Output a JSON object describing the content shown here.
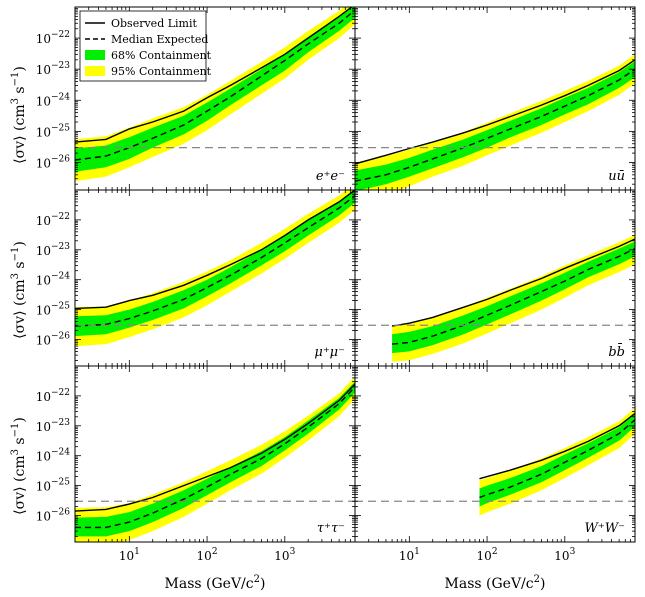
{
  "chart_data": {
    "type": "line",
    "layout": "3 rows x 2 columns, shared log axes",
    "x_scale": "log",
    "y_scale": "log",
    "xlim": [
      2,
      8000
    ],
    "ylim": [
      1.3e-27,
      1e-21
    ],
    "xlabel_main": "Mass (GeV/c",
    "xlabel_sup": "2",
    "xlabel_close": ")",
    "ylabel_main": "⟨σv⟩ (cm",
    "ylabel_sup1": "3",
    "ylabel_mid": " s",
    "ylabel_sup2": "−1",
    "ylabel_close": ")",
    "x_ticks": [
      {
        "value": 10,
        "base": "10",
        "exp": "1"
      },
      {
        "value": 100,
        "base": "10",
        "exp": "2"
      },
      {
        "value": 1000,
        "base": "10",
        "exp": "3"
      }
    ],
    "y_ticks": [
      {
        "value": 1e-26,
        "base": "10",
        "exp": "−26"
      },
      {
        "value": 1e-25,
        "base": "10",
        "exp": "−25"
      },
      {
        "value": 1e-24,
        "base": "10",
        "exp": "−24"
      },
      {
        "value": 1e-23,
        "base": "10",
        "exp": "−23"
      },
      {
        "value": 1e-22,
        "base": "10",
        "exp": "−22"
      }
    ],
    "reference_line_y": 3e-26,
    "legend": {
      "placement": "top-left of first panel",
      "entries": [
        {
          "label": "Observed Limit",
          "style": "solid"
        },
        {
          "label": "Median Expected",
          "style": "dashed"
        },
        {
          "label": "68% Containment",
          "color": "#00ee00"
        },
        {
          "label": "95% Containment",
          "color": "#ffff00"
        }
      ]
    },
    "colors": {
      "band68": "#00ee00",
      "band95": "#ffff00",
      "observed": "#000000",
      "median": "#000000",
      "reference": "#888888"
    },
    "panels": [
      {
        "channel": "e⁺e⁻",
        "mass": [
          2,
          5,
          10,
          20,
          50,
          100,
          200,
          500,
          1000,
          2000,
          5000,
          8000
        ],
        "observed": [
          4.5e-26,
          5.5e-26,
          1.2e-25,
          2e-25,
          4.5e-25,
          1.2e-24,
          3e-24,
          1.1e-23,
          3e-23,
          1e-22,
          5e-22,
          1.2e-21
        ],
        "median": [
          1.2e-26,
          1.6e-26,
          3e-26,
          6e-26,
          1.6e-25,
          4.5e-25,
          1.3e-24,
          6e-24,
          1.9e-23,
          6.5e-23,
          3e-22,
          8e-22
        ],
        "band68_low": [
          5e-27,
          7e-27,
          1.3e-26,
          3e-26,
          8e-26,
          2.2e-25,
          7e-25,
          3e-24,
          9e-24,
          3.5e-23,
          1.7e-22,
          4.5e-22
        ],
        "band68_high": [
          2.8e-26,
          3.5e-26,
          6.5e-26,
          1.3e-25,
          3.2e-25,
          8.5e-25,
          2.4e-24,
          1e-23,
          3.2e-23,
          1.1e-22,
          5e-22,
          1.3e-21
        ],
        "band95_low": [
          2.5e-27,
          3.5e-27,
          7e-27,
          1.5e-26,
          4e-26,
          1.1e-25,
          3.5e-25,
          1.6e-24,
          5e-24,
          2e-23,
          1e-22,
          2.8e-22
        ],
        "band95_high": [
          5.5e-26,
          7e-26,
          1.3e-25,
          2.6e-25,
          6e-25,
          1.5e-24,
          4.2e-24,
          1.7e-23,
          5e-23,
          1.7e-22,
          7.5e-22,
          2e-21
        ]
      },
      {
        "channel": "uū",
        "mass": [
          2,
          5,
          10,
          20,
          50,
          100,
          200,
          500,
          1000,
          2000,
          5000,
          8000
        ],
        "observed": [
          9e-27,
          1.7e-26,
          2.8e-26,
          4.5e-26,
          9e-26,
          1.6e-25,
          3e-25,
          7e-25,
          1.4e-24,
          3e-24,
          9e-24,
          2e-23
        ],
        "median": [
          2.5e-27,
          4e-27,
          7e-27,
          1.3e-26,
          3e-26,
          6e-26,
          1.2e-25,
          3e-25,
          6.5e-25,
          1.4e-24,
          4.5e-24,
          1e-23
        ],
        "band68_low": [
          1.2e-27,
          2e-27,
          3.5e-27,
          6.5e-27,
          1.5e-26,
          3e-26,
          6.5e-26,
          1.6e-25,
          3.5e-25,
          7.5e-25,
          2.5e-24,
          5.5e-24
        ],
        "band68_high": [
          5.5e-27,
          8.5e-27,
          1.4e-26,
          2.6e-26,
          5.5e-26,
          1.1e-25,
          2.2e-25,
          5.5e-25,
          1.2e-24,
          2.5e-24,
          8e-24,
          1.8e-23
        ],
        "band95_low": [
          5e-28,
          9e-28,
          1.7e-27,
          3.5e-27,
          8e-27,
          1.7e-26,
          3.5e-26,
          9e-26,
          2e-25,
          4.5e-25,
          1.5e-24,
          3.5e-24
        ],
        "band95_high": [
          1e-26,
          1.6e-26,
          2.6e-26,
          4.5e-26,
          9.5e-26,
          1.9e-25,
          3.8e-25,
          9.5e-25,
          2e-24,
          4.2e-24,
          1.3e-23,
          3e-23
        ]
      },
      {
        "channel": "μ⁺μ⁻",
        "mass": [
          2,
          5,
          10,
          20,
          50,
          100,
          200,
          500,
          1000,
          2000,
          5000,
          8000
        ],
        "observed": [
          1.1e-25,
          1.2e-25,
          2e-25,
          3e-25,
          6.5e-25,
          1.4e-24,
          3.2e-24,
          1e-23,
          3e-23,
          1e-22,
          4e-22,
          1e-21
        ],
        "median": [
          2.8e-26,
          3.2e-26,
          5e-26,
          9e-26,
          2.2e-25,
          5.5e-25,
          1.4e-24,
          5.5e-24,
          1.7e-23,
          5.5e-23,
          2.5e-22,
          6.5e-22
        ],
        "band68_low": [
          1.3e-26,
          1.5e-26,
          2.5e-26,
          4.5e-26,
          1.1e-25,
          2.8e-25,
          7.5e-25,
          3e-24,
          9e-24,
          3e-23,
          1.4e-22,
          3.8e-22
        ],
        "band68_high": [
          6e-26,
          6.5e-26,
          1e-25,
          1.8e-25,
          4.5e-25,
          1e-24,
          2.6e-24,
          1e-23,
          3e-23,
          1e-22,
          4.2e-22,
          1.1e-21
        ],
        "band95_low": [
          6e-27,
          7e-27,
          1.2e-26,
          2.2e-26,
          5.5e-26,
          1.4e-25,
          4e-25,
          1.6e-24,
          5e-24,
          1.7e-23,
          8e-23,
          2.2e-22
        ],
        "band95_high": [
          1.2e-25,
          1.3e-25,
          2e-25,
          3.5e-25,
          8.5e-25,
          1.9e-24,
          4.5e-24,
          1.7e-23,
          5e-23,
          1.6e-22,
          6.5e-22,
          1.7e-21
        ]
      },
      {
        "channel": "bb̄",
        "mass": [
          6,
          10,
          20,
          50,
          100,
          200,
          500,
          1000,
          2000,
          5000,
          8000
        ],
        "observed": [
          2.8e-26,
          3.5e-26,
          5.5e-26,
          1.2e-25,
          2.2e-25,
          4.5e-25,
          1.1e-24,
          2.4e-24,
          5e-24,
          1.3e-23,
          2.3e-23
        ],
        "median": [
          7e-27,
          8e-27,
          1.3e-26,
          3e-26,
          6.5e-26,
          1.4e-25,
          4e-25,
          9e-25,
          2.2e-24,
          6e-24,
          1.1e-23
        ],
        "band68_low": [
          3.5e-27,
          4e-27,
          6.5e-27,
          1.5e-26,
          3.2e-26,
          7e-26,
          2e-25,
          4.8e-25,
          1.2e-24,
          3.3e-24,
          6e-24
        ],
        "band68_high": [
          1.5e-26,
          1.8e-26,
          2.8e-26,
          6.5e-26,
          1.3e-25,
          2.8e-25,
          7.5e-25,
          1.7e-24,
          4e-24,
          1.1e-23,
          1.9e-23
        ],
        "band95_low": [
          1.8e-27,
          2e-27,
          3.3e-27,
          7.5e-27,
          1.6e-26,
          3.5e-26,
          1e-25,
          2.5e-25,
          6.5e-25,
          1.8e-24,
          3.3e-24
        ],
        "band95_high": [
          3e-26,
          3.5e-26,
          5.5e-26,
          1.2e-25,
          2.5e-25,
          5e-25,
          1.3e-24,
          3e-24,
          6.5e-24,
          1.8e-23,
          3.2e-23
        ]
      },
      {
        "channel": "τ⁺τ⁻",
        "mass": [
          2,
          5,
          10,
          20,
          50,
          100,
          200,
          500,
          1000,
          2000,
          5000,
          8000
        ],
        "observed": [
          1.4e-26,
          1.6e-26,
          2.4e-26,
          4e-26,
          1e-25,
          2e-25,
          4e-25,
          1.2e-24,
          3.5e-24,
          1.2e-23,
          7e-23,
          2.5e-22
        ],
        "median": [
          4e-27,
          4e-27,
          6e-27,
          1.2e-26,
          3.5e-26,
          9e-26,
          2.4e-25,
          8e-25,
          2.5e-24,
          9e-24,
          5.5e-23,
          2e-22
        ],
        "band68_low": [
          2e-27,
          2e-27,
          3e-27,
          6e-27,
          1.8e-26,
          4.8e-26,
          1.3e-25,
          4.5e-25,
          1.5e-24,
          5.5e-24,
          3.5e-23,
          1.3e-22
        ],
        "band68_high": [
          8.5e-27,
          9e-27,
          1.3e-26,
          2.5e-26,
          7e-26,
          1.7e-25,
          4.2e-25,
          1.4e-24,
          4.2e-24,
          1.5e-23,
          8.5e-23,
          3e-22
        ],
        "band95_low": [
          1e-27,
          1e-27,
          1.5e-27,
          3e-27,
          9e-27,
          2.5e-26,
          7e-26,
          2.5e-25,
          8.5e-25,
          3.2e-24,
          2.1e-23,
          8e-23
        ],
        "band95_high": [
          1.8e-26,
          1.9e-26,
          2.6e-26,
          5e-26,
          1.3e-25,
          3e-25,
          7e-25,
          2.3e-24,
          6.5e-24,
          2.2e-23,
          1.2e-22,
          4.5e-22
        ]
      },
      {
        "channel": "W⁺W⁻",
        "mass": [
          80,
          100,
          200,
          500,
          1000,
          2000,
          5000,
          8000
        ],
        "observed": [
          1.7e-25,
          2e-25,
          3.3e-25,
          7e-25,
          1.4e-24,
          3e-24,
          1e-23,
          2.6e-23
        ],
        "median": [
          4e-26,
          5e-26,
          9e-26,
          2.4e-25,
          6e-25,
          1.5e-24,
          5.5e-24,
          1.6e-23
        ],
        "band68_low": [
          2e-26,
          2.6e-26,
          5e-26,
          1.3e-25,
          3.3e-25,
          8.5e-25,
          3.2e-24,
          9.5e-24
        ],
        "band68_high": [
          8e-26,
          1e-25,
          1.8e-25,
          4.5e-25,
          1.1e-24,
          2.6e-24,
          9e-24,
          2.6e-23
        ],
        "band95_low": [
          1e-26,
          1.3e-26,
          2.5e-26,
          7e-26,
          1.8e-25,
          4.8e-25,
          1.8e-24,
          5.5e-24
        ],
        "band95_high": [
          1.5e-25,
          1.8e-25,
          3.3e-25,
          8e-25,
          1.8e-24,
          4.2e-24,
          1.4e-23,
          4e-23
        ]
      }
    ]
  }
}
